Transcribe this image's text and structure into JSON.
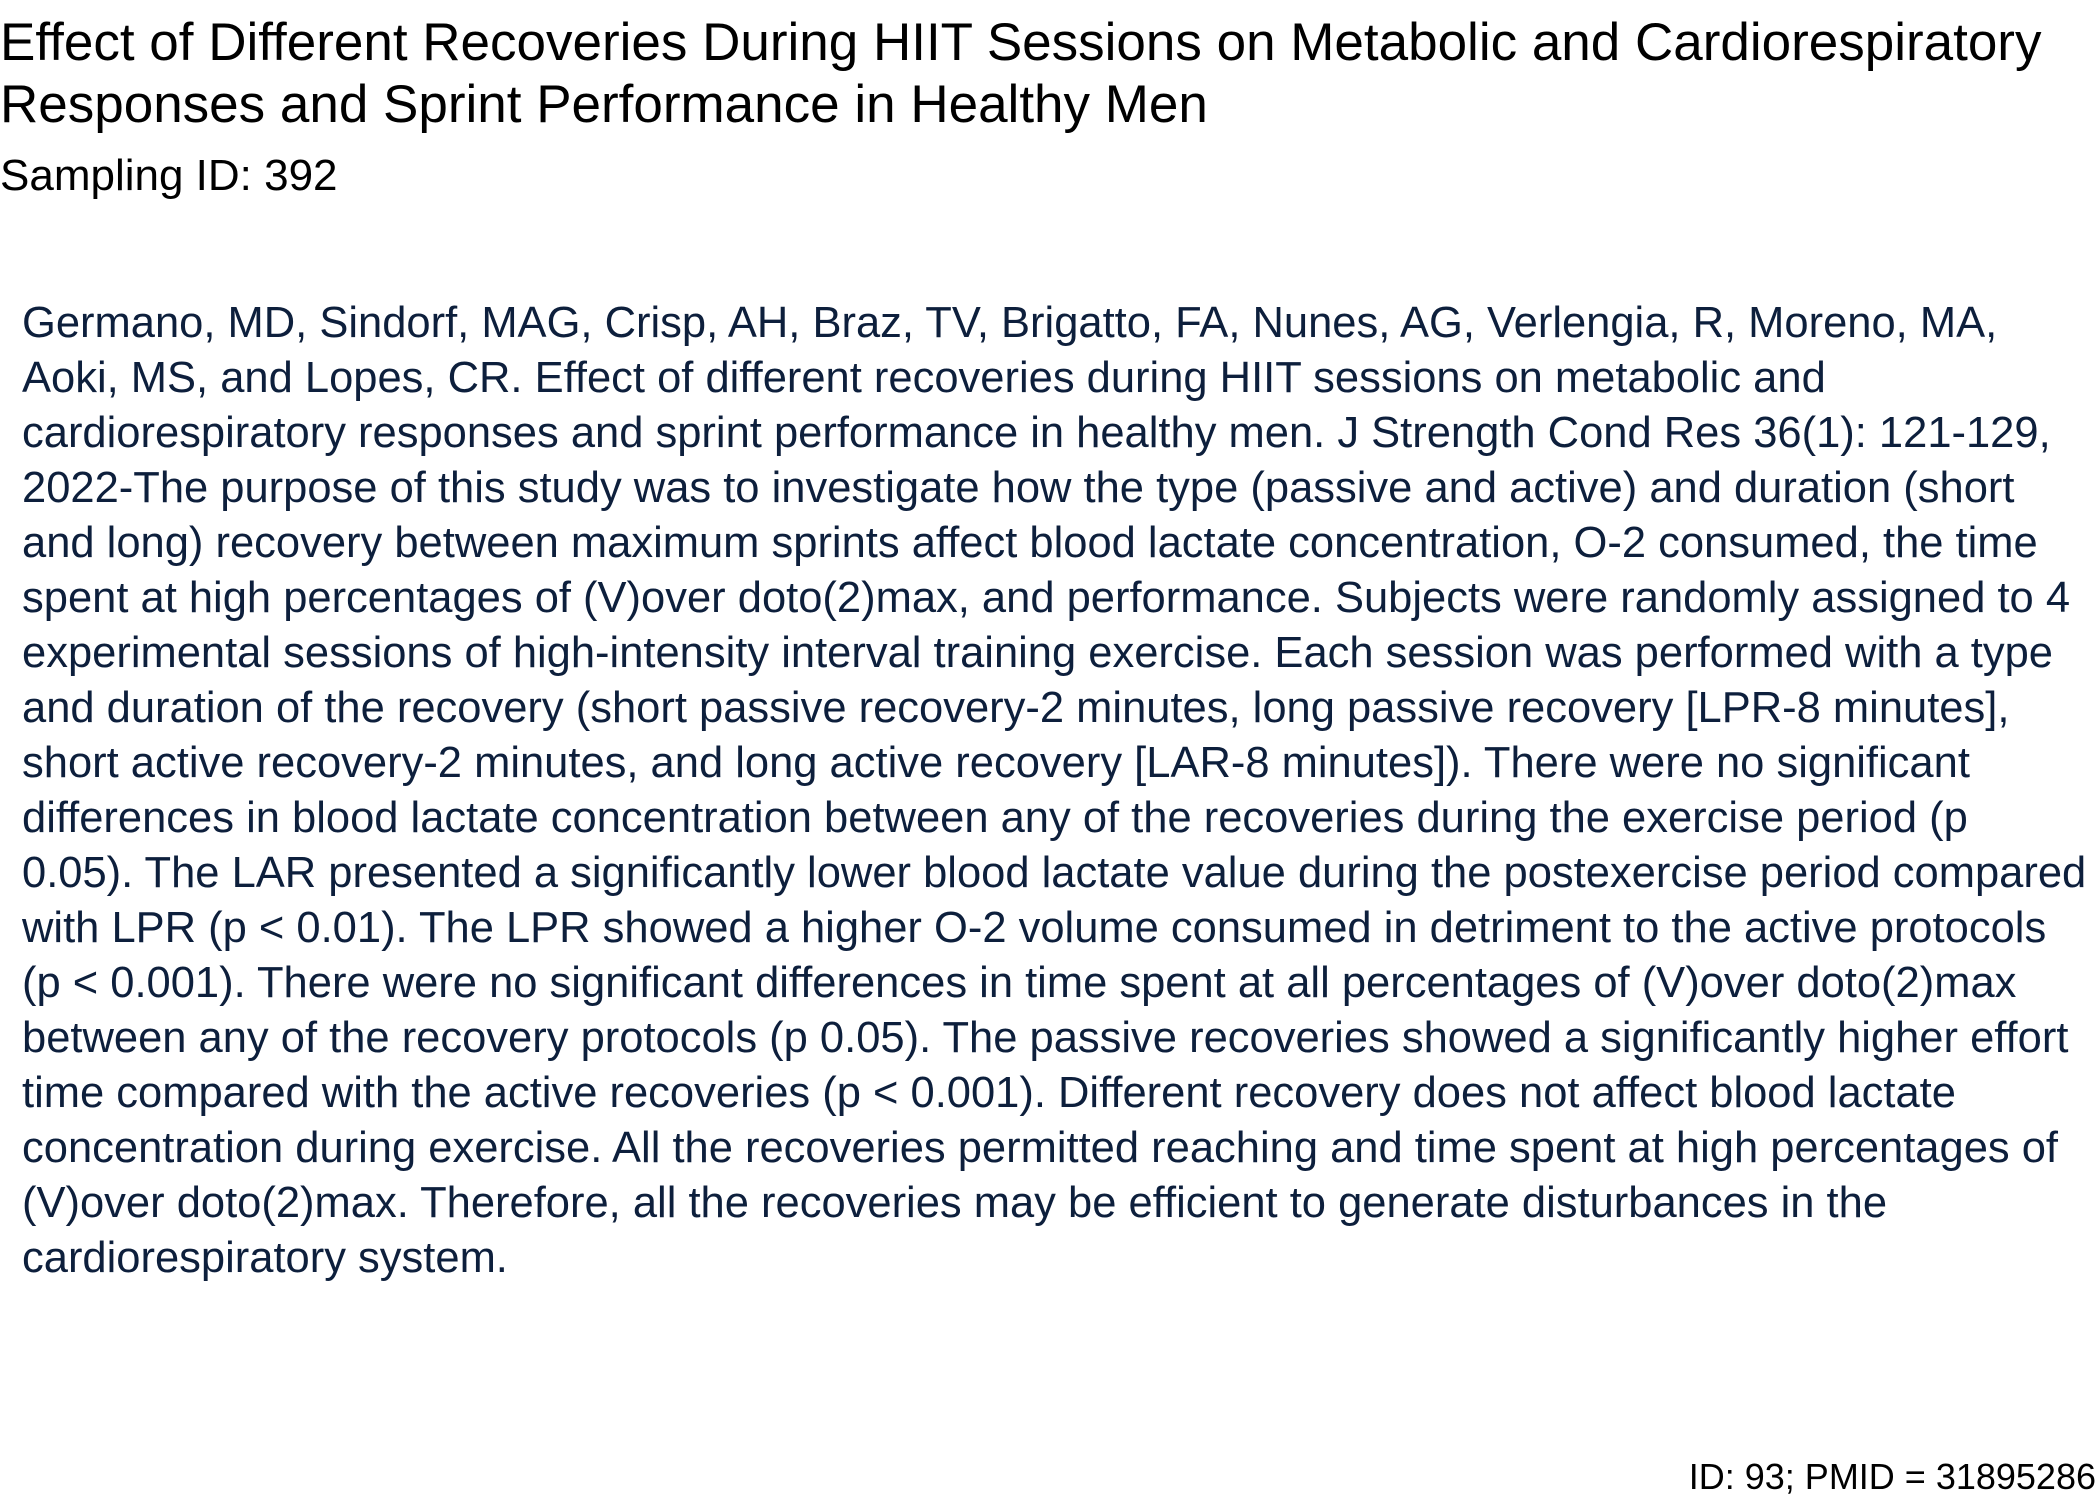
{
  "document": {
    "title": "Effect of Different Recoveries During HIIT Sessions on Metabolic and Cardiorespiratory Responses and Sprint Performance in Healthy Men",
    "sampling_id": "Sampling ID: 392",
    "abstract": "Germano, MD, Sindorf, MAG, Crisp, AH, Braz, TV, Brigatto, FA, Nunes, AG, Verlengia, R, Moreno, MA, Aoki, MS, and Lopes, CR. Effect of different recoveries during HIIT sessions on metabolic and cardiorespiratory responses and sprint performance in healthy men. J Strength Cond Res 36(1): 121-129, 2022-The purpose of this study was to investigate how the type (passive and active) and duration (short and long) recovery between maximum sprints affect blood lactate concentration, O-2 consumed, the time spent at high percentages of (V)over doto(2)max, and performance. Subjects were randomly assigned to 4 experimental sessions of high-intensity interval training exercise. Each session was performed with a type and duration of the recovery (short passive recovery-2 minutes, long passive recovery [LPR-8 minutes], short active recovery-2 minutes, and long active recovery [LAR-8 minutes]). There were no significant differences in blood lactate concentration between any of the recoveries during the exercise period (p 0.05). The LAR presented a significantly lower blood lactate value during the postexercise period compared with LPR (p < 0.01). The LPR showed a higher O-2 volume consumed in detriment to the active protocols (p < 0.001). There were no significant differences in time spent at all percentages of (V)over doto(2)max between any of the recovery protocols (p 0.05). The passive recoveries showed a significantly higher effort time compared with the active recoveries (p < 0.001). Different recovery does not affect blood lactate concentration during exercise. All the recoveries permitted reaching and time spent at high percentages of (V)over doto(2)max. Therefore, all the recoveries may be efficient to generate disturbances in the cardiorespiratory system.",
    "footer_id": "ID: 93; PMID = 31895286"
  },
  "colors": {
    "title_text": "#000000",
    "abstract_text": "#0d1f3c",
    "background": "#ffffff"
  }
}
